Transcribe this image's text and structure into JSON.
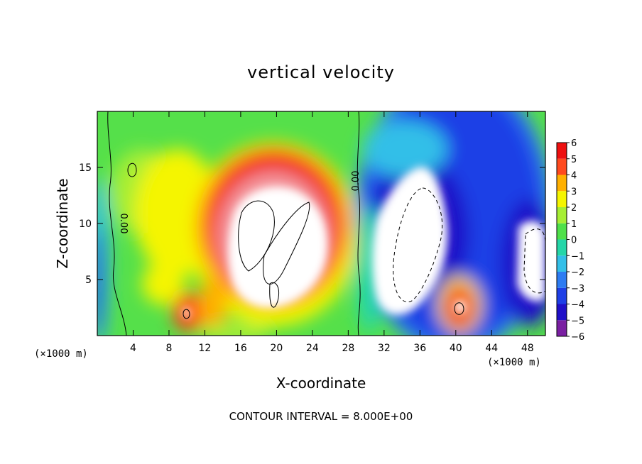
{
  "chart_data": {
    "type": "heatmap",
    "title": "vertical velocity",
    "xlabel": "X-coordinate",
    "ylabel": "Z-coordinate",
    "x_unit_label_left": "(×1000 m)",
    "x_unit_label_right": "(×1000 m)",
    "xlim": [
      0,
      50
    ],
    "ylim": [
      0,
      20
    ],
    "x_ticks": [
      "4",
      "8",
      "12",
      "16",
      "20",
      "24",
      "28",
      "32",
      "36",
      "40",
      "44",
      "48"
    ],
    "y_ticks": [
      "5",
      "10",
      "15"
    ],
    "colorbar": {
      "levels": [
        -6,
        -5,
        -4,
        -3,
        -2,
        -1,
        0,
        1,
        2,
        3,
        4,
        5,
        6
      ],
      "tick_labels": [
        "6",
        "5",
        "4",
        "3",
        "2",
        "1",
        "0",
        "−1",
        "−2",
        "−3",
        "−4",
        "−5",
        "−6"
      ],
      "colors": [
        "#7a1fa2",
        "#1f10c8",
        "#1e3fe6",
        "#2d7cf2",
        "#33bfe8",
        "#25d6a8",
        "#4fe04a",
        "#a6ee34",
        "#f5f500",
        "#ffb000",
        "#ff4a1e",
        "#ee1010",
        "#f49aa0"
      ],
      "saturated_color": "#ffffff"
    },
    "contour_labels": [
      "0.00",
      "0.00"
    ],
    "footer": "CONTOUR INTERVAL = 8.000E+00"
  }
}
